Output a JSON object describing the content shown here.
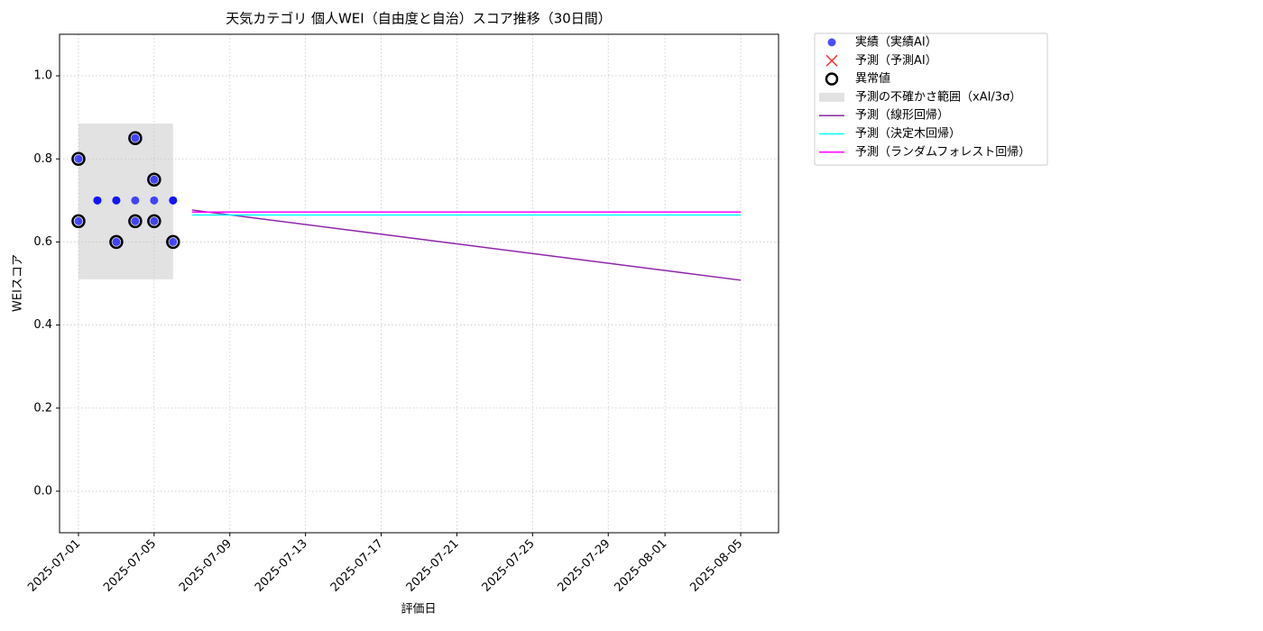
{
  "chart_data": {
    "type": "scatter",
    "title": "天気カテゴリ 個人WEI（自由度と自治）スコア推移（30日間）",
    "xlabel": "評価日",
    "ylabel": "WEIスコア",
    "xlim": [
      "2025-06-30",
      "2025-08-07"
    ],
    "ylim": [
      -0.1,
      1.1
    ],
    "xticks": [
      "2025-07-01",
      "2025-07-05",
      "2025-07-09",
      "2025-07-13",
      "2025-07-17",
      "2025-07-21",
      "2025-07-25",
      "2025-07-29",
      "2025-08-01",
      "2025-08-05"
    ],
    "yticks": [
      {
        "value": 0,
        "label": "0.0"
      },
      0.2,
      0.4,
      0.6,
      0.8,
      {
        "value": 1,
        "label": "1.0"
      }
    ],
    "grid": true,
    "legend": "outside-upper-right",
    "series": [
      {
        "name": "実績（実績AI）",
        "color": "#0000ff",
        "marker": "circle",
        "x": [
          "2025-07-01",
          "2025-07-01",
          "2025-07-02",
          "2025-07-02",
          "2025-07-03",
          "2025-07-03",
          "2025-07-03",
          "2025-07-04",
          "2025-07-04",
          "2025-07-04",
          "2025-07-05",
          "2025-07-05",
          "2025-07-05",
          "2025-07-06",
          "2025-07-06",
          "2025-07-06"
        ],
        "values": [
          0.8,
          0.65,
          0.7,
          0.7,
          0.7,
          0.7,
          0.6,
          0.7,
          0.85,
          0.65,
          0.65,
          0.75,
          0.7,
          0.7,
          0.7,
          0.6
        ]
      },
      {
        "name": "予測（予測AI）",
        "color": "#ff0000",
        "marker": "x",
        "x": [],
        "values": []
      },
      {
        "name": "異常値",
        "color": "#000000",
        "marker": "ring",
        "x": [
          "2025-07-01",
          "2025-07-01",
          "2025-07-03",
          "2025-07-04",
          "2025-07-04",
          "2025-07-05",
          "2025-07-05",
          "2025-07-06"
        ],
        "values": [
          0.8,
          0.65,
          0.6,
          0.85,
          0.65,
          0.65,
          0.75,
          0.6
        ]
      },
      {
        "name": "予測（線形回帰）",
        "color": "#8e24aa",
        "marker": "line",
        "x": [
          "2025-07-07",
          "2025-08-05"
        ],
        "values": [
          0.677,
          0.508
        ]
      },
      {
        "name": "予測（決定木回帰）",
        "color": "#00ffff",
        "marker": "line",
        "x": [
          "2025-07-07",
          "2025-08-05"
        ],
        "values": [
          0.665,
          0.665
        ]
      },
      {
        "name": "予測（ランダムフォレスト回帰）",
        "color": "#ff00ff",
        "marker": "line",
        "x": [
          "2025-07-07",
          "2025-08-05"
        ],
        "values": [
          0.672,
          0.672
        ]
      }
    ],
    "band": {
      "name": "予測の不確かさ範囲（xAI/3σ）",
      "color": "#bfbfbf",
      "x": [
        "2025-07-01",
        "2025-07-06"
      ],
      "lower": 0.51,
      "upper": 0.885
    }
  }
}
